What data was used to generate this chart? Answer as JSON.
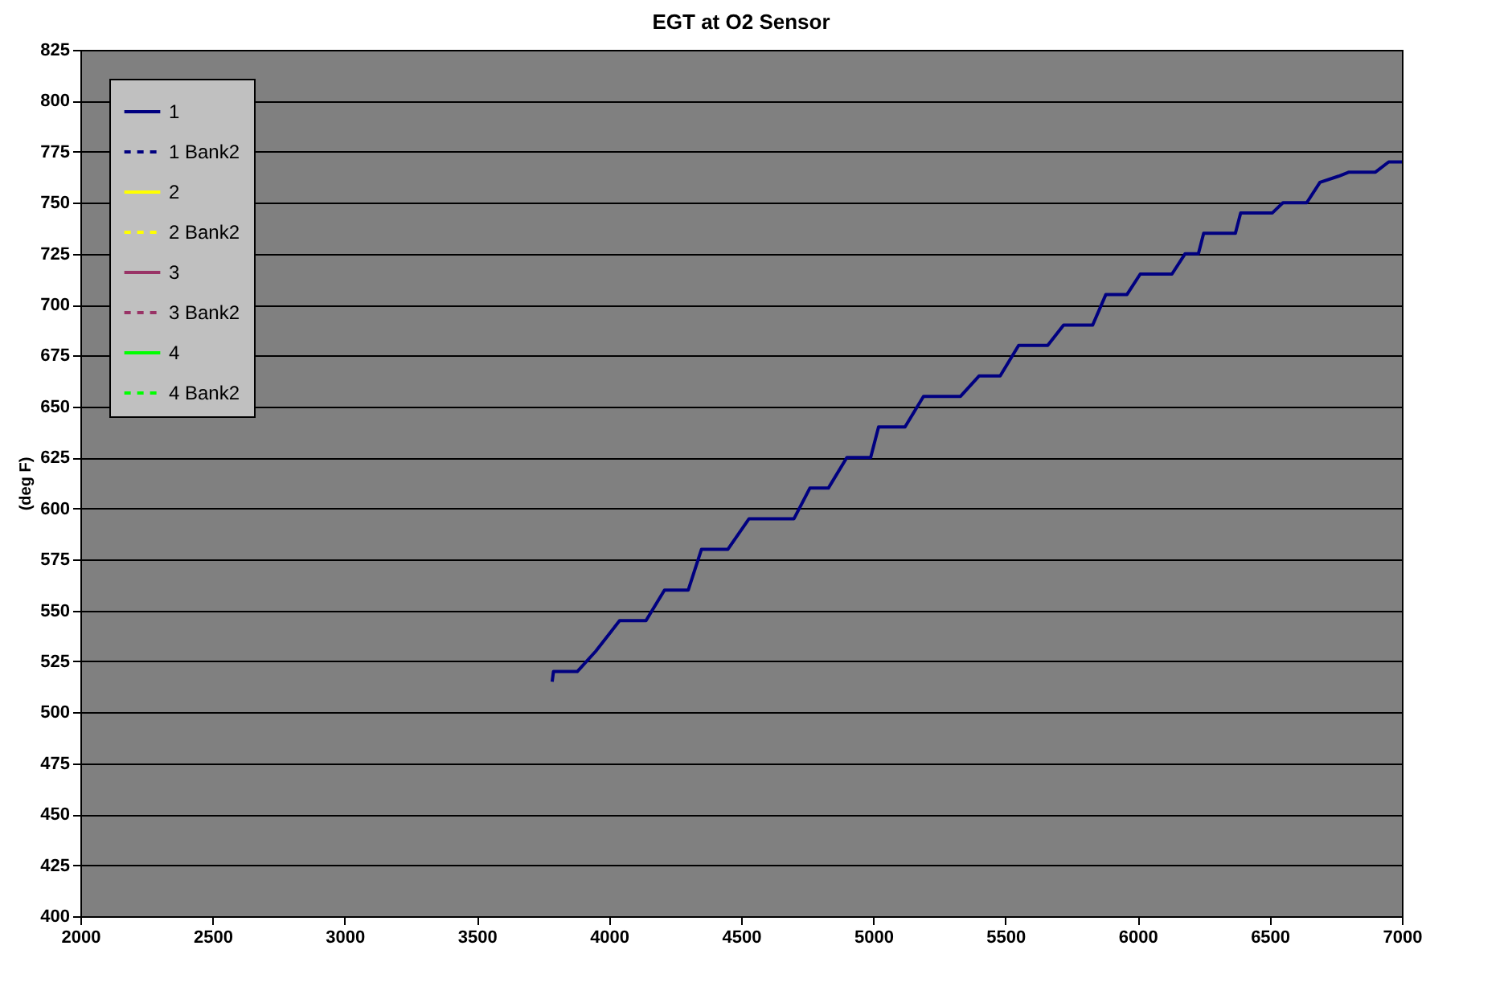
{
  "chart_data": {
    "type": "line",
    "title": "EGT at O2 Sensor",
    "ylabel": "(deg F)",
    "xlim": [
      2000,
      7000
    ],
    "xticks": [
      2000,
      2500,
      3000,
      3500,
      4000,
      4500,
      5000,
      5500,
      6000,
      6500,
      7000
    ],
    "ylim": [
      400,
      825
    ],
    "yticks": [
      400,
      425,
      450,
      475,
      500,
      525,
      550,
      575,
      600,
      625,
      650,
      675,
      700,
      725,
      750,
      775,
      800,
      825
    ],
    "grid": "y",
    "legend": "top left",
    "marker": "none",
    "series": [
      {
        "name": "1",
        "color": "#000080",
        "line_style": "solid",
        "x": [
          3785,
          3790,
          3880,
          3950,
          4040,
          4140,
          4210,
          4300,
          4350,
          4450,
          4530,
          4700,
          4760,
          4830,
          4900,
          4990,
          5020,
          5120,
          5190,
          5330,
          5400,
          5480,
          5550,
          5660,
          5720,
          5830,
          5880,
          5960,
          6010,
          6130,
          6180,
          6230,
          6250,
          6370,
          6390,
          6510,
          6550,
          6640,
          6690,
          6760,
          6800,
          6900,
          6950,
          7000
        ],
        "values": [
          515,
          520,
          520,
          530,
          545,
          545,
          560,
          560,
          580,
          580,
          595,
          595,
          610,
          610,
          625,
          625,
          640,
          640,
          655,
          655,
          665,
          665,
          680,
          680,
          690,
          690,
          705,
          705,
          715,
          715,
          725,
          725,
          735,
          735,
          745,
          745,
          750,
          750,
          760,
          763,
          765,
          765,
          770,
          770
        ]
      },
      {
        "name": "1 Bank2",
        "color": "#000080",
        "line_style": "dashed"
      },
      {
        "name": "2",
        "color": "#ffff00",
        "line_style": "solid"
      },
      {
        "name": "2 Bank2",
        "color": "#ffff00",
        "line_style": "dashed"
      },
      {
        "name": "3",
        "color": "#993366",
        "line_style": "solid"
      },
      {
        "name": "3 Bank2",
        "color": "#993366",
        "line_style": "dashed"
      },
      {
        "name": "4",
        "color": "#00ff00",
        "line_style": "solid"
      },
      {
        "name": "4 Bank2",
        "color": "#00ff00",
        "line_style": "dashed"
      }
    ]
  }
}
